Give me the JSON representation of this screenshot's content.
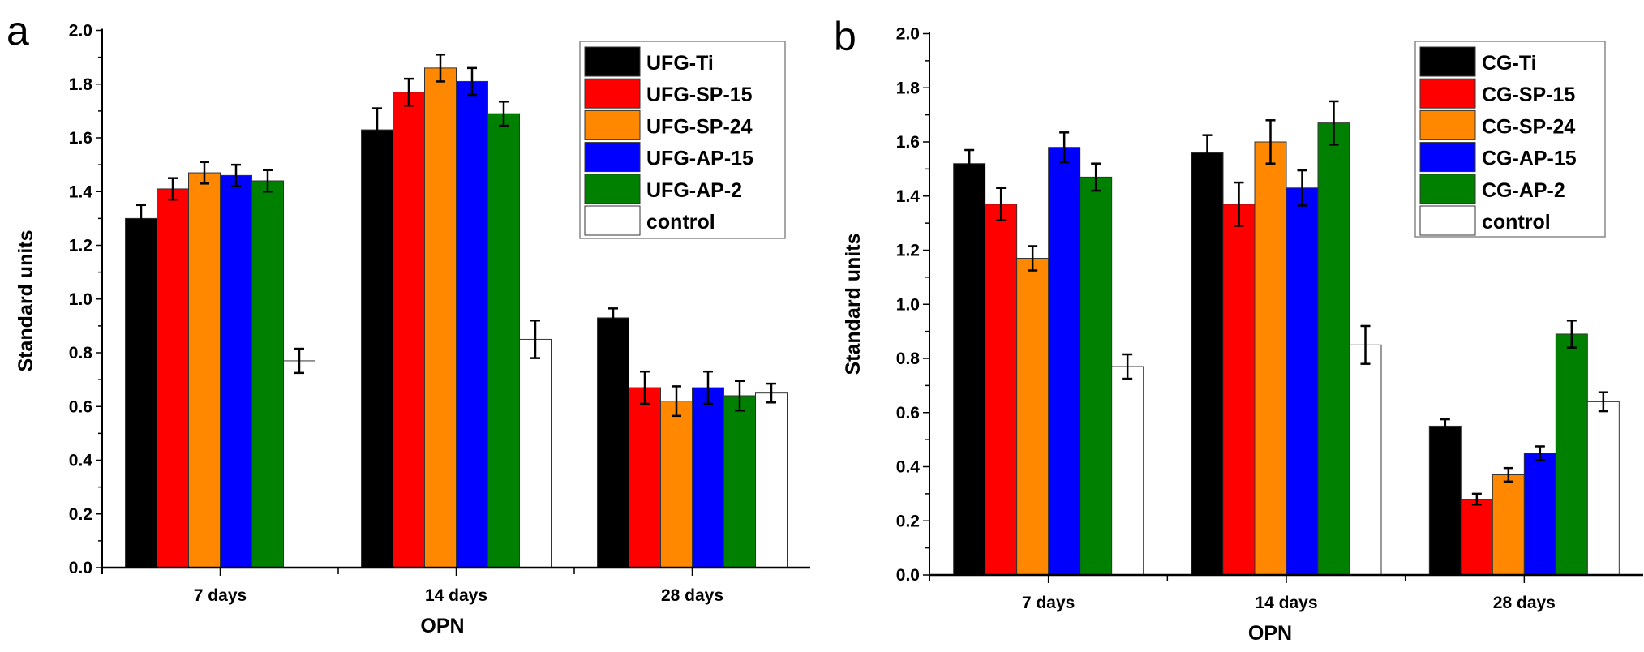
{
  "chart_data": [
    {
      "type": "bar",
      "panel_label": "a",
      "title": "",
      "xlabel": "OPN",
      "ylabel": "Standard units",
      "ylim": [
        0,
        2.0
      ],
      "yticks": [
        "0.0",
        "0.2",
        "0.4",
        "0.6",
        "0.8",
        "1.0",
        "1.2",
        "1.4",
        "1.6",
        "1.8",
        "2.0"
      ],
      "categories": [
        "7 days",
        "14 days",
        "28 days"
      ],
      "legend_position": "top-right",
      "grid": false,
      "series": [
        {
          "name": "UFG-Ti",
          "color": "#000000",
          "values": [
            1.3,
            1.63,
            0.93
          ],
          "errors": [
            0.05,
            0.08,
            0.035
          ]
        },
        {
          "name": "UFG-SP-15",
          "color": "#ff0000",
          "values": [
            1.41,
            1.77,
            0.67
          ],
          "errors": [
            0.04,
            0.05,
            0.06
          ]
        },
        {
          "name": "UFG-SP-24",
          "color": "#ff8800",
          "values": [
            1.47,
            1.86,
            0.62
          ],
          "errors": [
            0.04,
            0.05,
            0.055
          ]
        },
        {
          "name": "UFG-AP-15",
          "color": "#0000ff",
          "values": [
            1.46,
            1.81,
            0.67
          ],
          "errors": [
            0.04,
            0.05,
            0.06
          ]
        },
        {
          "name": "UFG-AP-2",
          "color": "#008000",
          "values": [
            1.44,
            1.69,
            0.64
          ],
          "errors": [
            0.04,
            0.045,
            0.055
          ]
        },
        {
          "name": "control",
          "color": "#ffffff",
          "values": [
            0.77,
            0.85,
            0.65
          ],
          "errors": [
            0.045,
            0.07,
            0.035
          ]
        }
      ]
    },
    {
      "type": "bar",
      "panel_label": "b",
      "title": "",
      "xlabel": "OPN",
      "ylabel": "Standard units",
      "ylim": [
        0,
        2.0
      ],
      "yticks": [
        "0.0",
        "0.2",
        "0.4",
        "0.6",
        "0.8",
        "1.0",
        "1.2",
        "1.4",
        "1.6",
        "1.8",
        "2.0"
      ],
      "categories": [
        "7 days",
        "14 days",
        "28 days"
      ],
      "legend_position": "top-right",
      "grid": false,
      "series": [
        {
          "name": "CG-Ti",
          "color": "#000000",
          "values": [
            1.52,
            1.56,
            0.55
          ],
          "errors": [
            0.05,
            0.065,
            0.025
          ]
        },
        {
          "name": "CG-SP-15",
          "color": "#ff0000",
          "values": [
            1.37,
            1.37,
            0.28
          ],
          "errors": [
            0.06,
            0.08,
            0.02
          ]
        },
        {
          "name": "CG-SP-24",
          "color": "#ff8800",
          "values": [
            1.17,
            1.6,
            0.37
          ],
          "errors": [
            0.045,
            0.08,
            0.025
          ]
        },
        {
          "name": "CG-AP-15",
          "color": "#0000ff",
          "values": [
            1.58,
            1.43,
            0.45
          ],
          "errors": [
            0.055,
            0.065,
            0.025
          ]
        },
        {
          "name": "CG-AP-2",
          "color": "#008000",
          "values": [
            1.47,
            1.67,
            0.89
          ],
          "errors": [
            0.05,
            0.08,
            0.05
          ]
        },
        {
          "name": "control",
          "color": "#ffffff",
          "values": [
            0.77,
            0.85,
            0.64
          ],
          "errors": [
            0.045,
            0.07,
            0.035
          ]
        }
      ]
    }
  ]
}
